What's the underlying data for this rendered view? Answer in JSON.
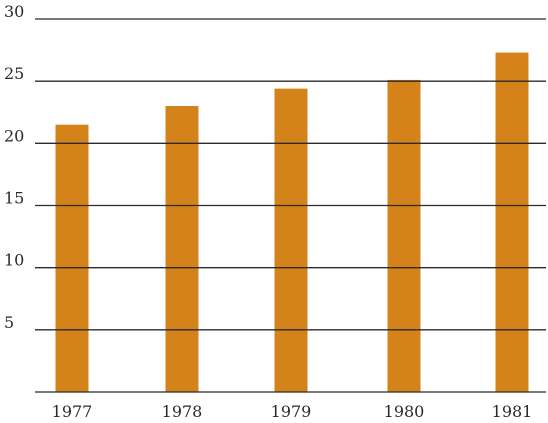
{
  "chart_data": {
    "type": "bar",
    "title": "",
    "xlabel": "",
    "ylabel": "",
    "categories": [
      "1977",
      "1978",
      "1979",
      "1980",
      "1981"
    ],
    "values": [
      21.5,
      23.0,
      24.4,
      25.1,
      27.3
    ],
    "ylim": [
      0,
      30
    ],
    "yticks": [
      0,
      5,
      10,
      15,
      20,
      25,
      30
    ],
    "ytick_labels": [
      "5",
      "10",
      "15",
      "20",
      "25",
      "30"
    ],
    "grid": true,
    "legend": "none",
    "colors": {
      "bar": "#d4821a",
      "grid": "#2b2b2b",
      "text": "#2a2a2a"
    }
  }
}
